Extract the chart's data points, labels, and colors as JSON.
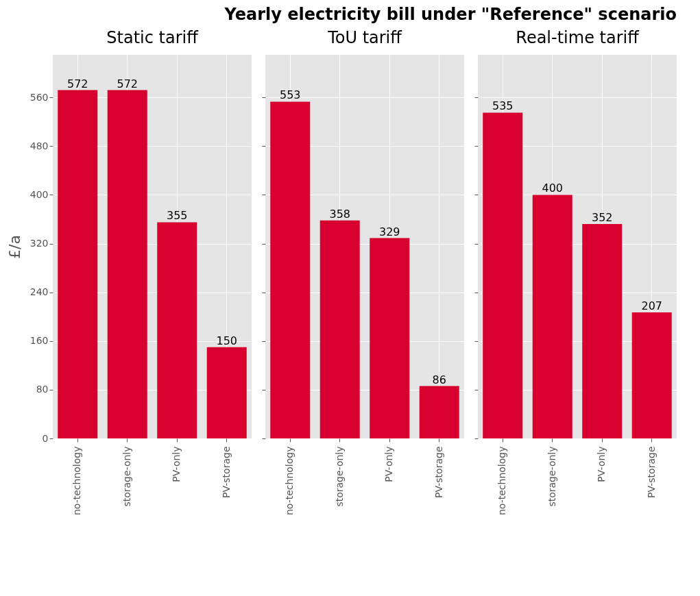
{
  "chart_data": [
    {
      "type": "bar",
      "title": "Static tariff",
      "ylabel": "£/a",
      "categories": [
        "no-technology",
        "storage-only",
        "PV-only",
        "PV-storage"
      ],
      "values": [
        572,
        572,
        355,
        150
      ],
      "color": "#d7002f",
      "ylim": [
        0,
        630
      ],
      "yticks": [
        0,
        80,
        160,
        240,
        320,
        400,
        480,
        560
      ],
      "grid": true,
      "data_labels": true
    },
    {
      "type": "bar",
      "title": "Yearly electricity bill under \"Reference\" scenario",
      "subtitle": "ToU tariff",
      "categories": [
        "no-technology",
        "storage-only",
        "PV-only",
        "PV-storage"
      ],
      "values": [
        553,
        358,
        329,
        86
      ],
      "color": "#d7002f",
      "ylim": [
        0,
        630
      ],
      "yticks": [
        0,
        80,
        160,
        240,
        320,
        400,
        480,
        560
      ],
      "grid": true,
      "data_labels": true,
      "tick_labels": "x"
    },
    {
      "type": "bar",
      "title": "Real-time tariff",
      "categories": [
        "no-technology",
        "storage-only",
        "PV-only",
        "PV-storage"
      ],
      "values": [
        535,
        400,
        352,
        207
      ],
      "color": "#d7002f",
      "ylim": [
        0,
        630
      ],
      "yticks": [
        0,
        80,
        160,
        240,
        320,
        400,
        480,
        560
      ],
      "grid": true,
      "data_labels": true,
      "tick_labels": "x"
    }
  ]
}
